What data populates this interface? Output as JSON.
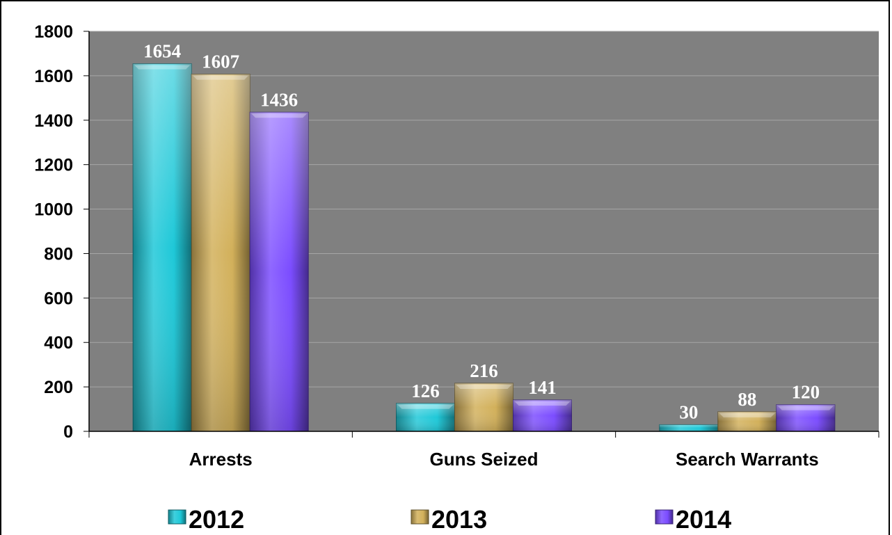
{
  "chart_data": {
    "type": "bar",
    "categories": [
      "Arrests",
      "Guns Seized",
      "Search Warrants"
    ],
    "series": [
      {
        "name": "2012",
        "values": [
          1654,
          126,
          30
        ],
        "color": "#1ec8d8"
      },
      {
        "name": "2013",
        "values": [
          1607,
          216,
          88
        ],
        "color": "#d2b05a"
      },
      {
        "name": "2014",
        "values": [
          1436,
          141,
          120
        ],
        "color": "#7b4cff"
      }
    ],
    "ylim": [
      0,
      1800
    ],
    "yticks": [
      0,
      200,
      400,
      600,
      800,
      1000,
      1200,
      1400,
      1600,
      1800
    ],
    "title": "",
    "xlabel": "",
    "ylabel": "",
    "grid": true,
    "legend": "bottom",
    "plot_background": "#808080"
  }
}
